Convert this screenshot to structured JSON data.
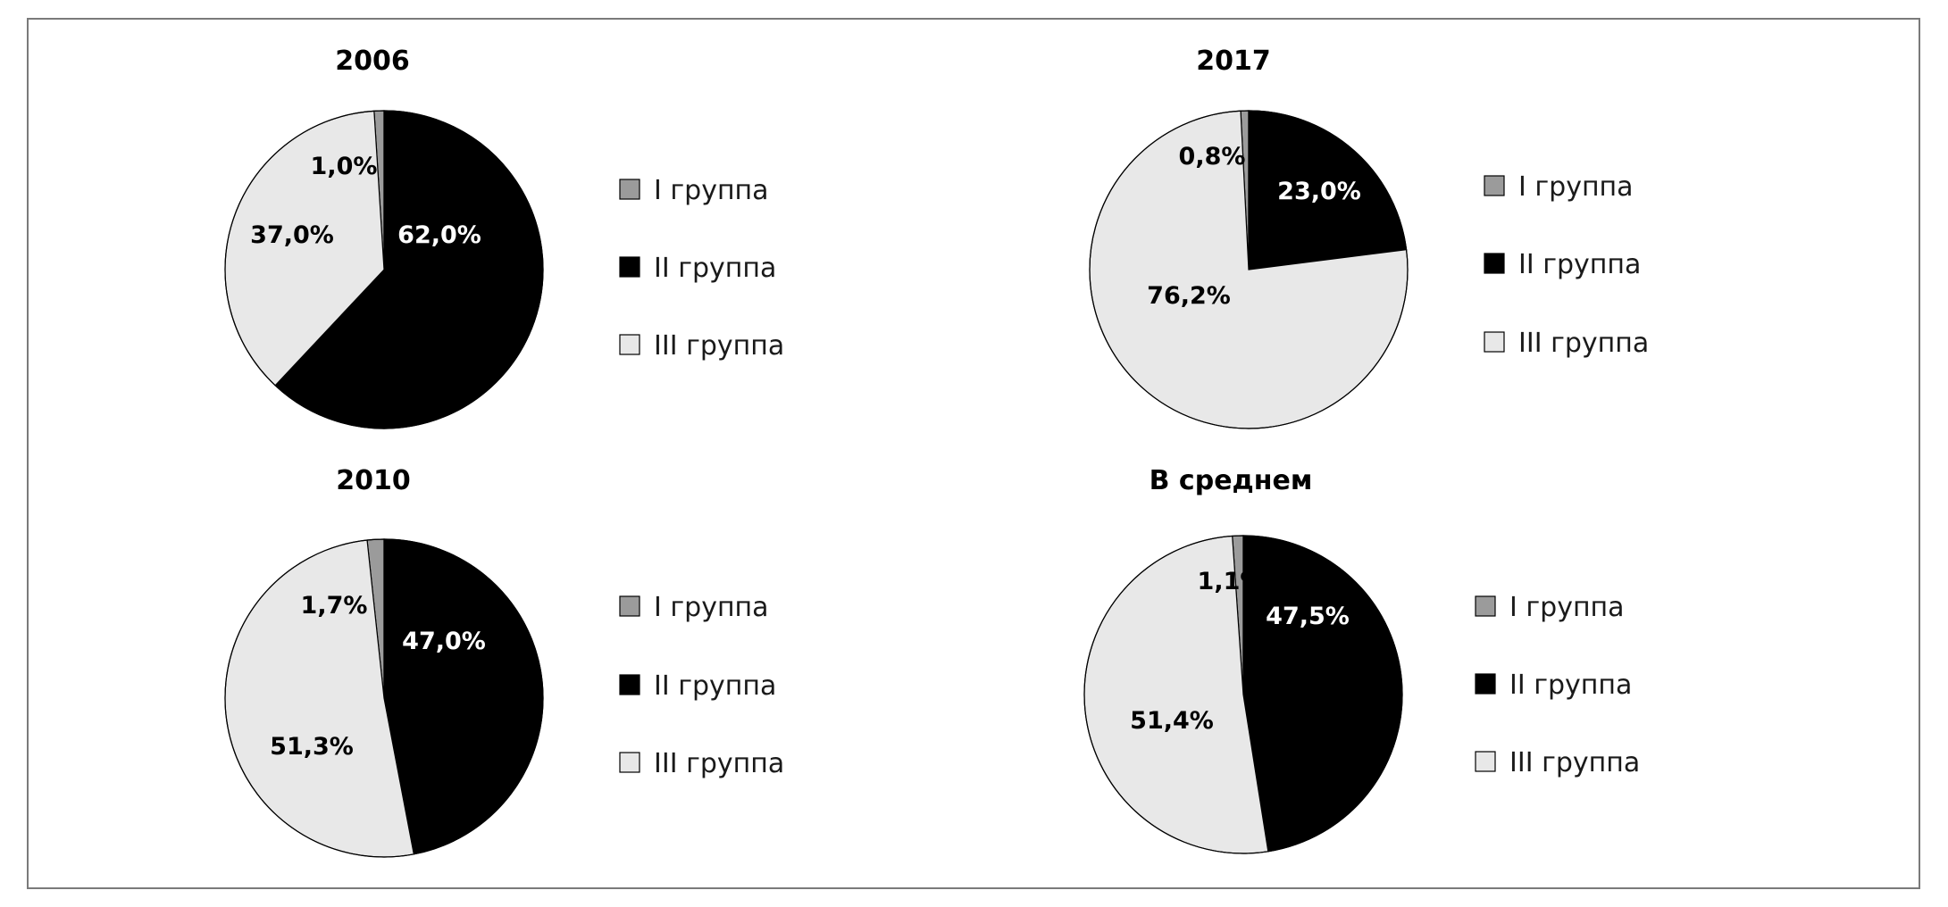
{
  "chart_data": [
    {
      "type": "pie",
      "title": "2006",
      "categories": [
        "I группа",
        "II группа",
        "III группа"
      ],
      "values": [
        1.0,
        62.0,
        37.0
      ],
      "labels": [
        "1,0%",
        "62,0%",
        "37,0%"
      ],
      "colors": [
        "#9b9b9b",
        "#000000",
        "#e8e8e8"
      ],
      "legend": "right"
    },
    {
      "type": "pie",
      "title": "2017",
      "categories": [
        "I группа",
        "II группа",
        "III группа"
      ],
      "values": [
        0.8,
        23.0,
        76.2
      ],
      "labels": [
        "0,8%",
        "23,0%",
        "76,2%"
      ],
      "colors": [
        "#9b9b9b",
        "#000000",
        "#e8e8e8"
      ],
      "legend": "right"
    },
    {
      "type": "pie",
      "title": "2010",
      "categories": [
        "I группа",
        "II группа",
        "III группа"
      ],
      "values": [
        1.7,
        47.0,
        51.3
      ],
      "labels": [
        "1,7%",
        "47,0%",
        "51,3%"
      ],
      "colors": [
        "#9b9b9b",
        "#000000",
        "#e8e8e8"
      ],
      "legend": "right"
    },
    {
      "type": "pie",
      "title": "В среднем",
      "categories": [
        "I группа",
        "II группа",
        "III группа"
      ],
      "values": [
        1.1,
        47.5,
        51.4
      ],
      "labels": [
        "1,1%",
        "47,5%",
        "51,4%"
      ],
      "colors": [
        "#9b9b9b",
        "#000000",
        "#e8e8e8"
      ],
      "legend": "right"
    }
  ]
}
